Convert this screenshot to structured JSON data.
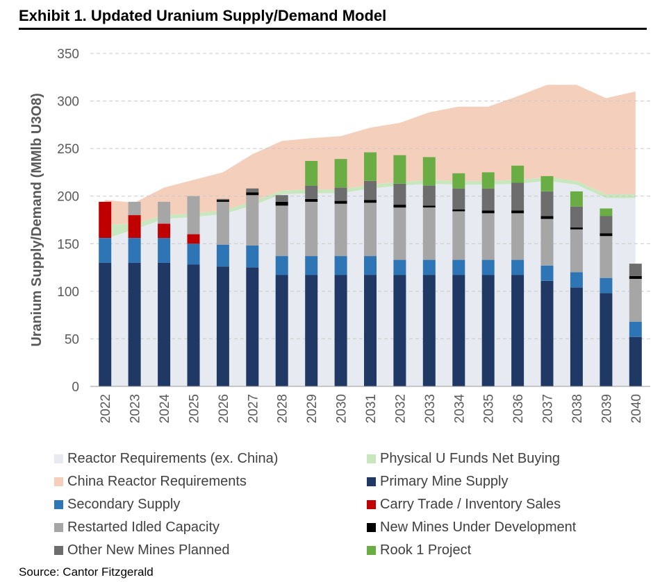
{
  "header": {
    "title": "Exhibit 1. Updated Uranium Supply/Demand Model"
  },
  "footer": {
    "source": "Source: Cantor Fitzgerald"
  },
  "colors": {
    "reactor_ex_china": "#e7ebf1",
    "china_reactor": "#f4cfbb",
    "physical_funds": "#c9e7bf",
    "primary": "#1f3864",
    "secondary": "#2e75b6",
    "carry_trade": "#c00000",
    "restarted": "#a6a6a6",
    "new_mines": "#000000",
    "other_new": "#6d6d6d",
    "rook1": "#6aad45",
    "grid": "#c8c8c8",
    "axis_text": "#595959"
  },
  "chart_data": {
    "type": "bar",
    "stacked": true,
    "ylabel": "Uranium Supply/Demand (MMlb U3O8)",
    "ylim": [
      0,
      350
    ],
    "yticks": [
      0,
      50,
      100,
      150,
      200,
      250,
      300,
      350
    ],
    "grid": true,
    "legend_position": "bottom",
    "categories": [
      "2022",
      "2023",
      "2024",
      "2025",
      "2026",
      "2027",
      "2028",
      "2029",
      "2030",
      "2031",
      "2032",
      "2033",
      "2034",
      "2035",
      "2036",
      "2037",
      "2038",
      "2039",
      "2040"
    ],
    "area_series": [
      {
        "key": "reactor_ex_china",
        "name": "Reactor Requirements (ex. China)",
        "values": [
          155,
          165,
          176,
          178,
          181,
          190,
          202,
          203,
          203,
          208,
          211,
          213,
          212,
          212,
          213,
          216,
          212,
          198,
          198
        ]
      },
      {
        "key": "physical_funds",
        "name": "Physical U Funds Net Buying",
        "values": [
          15,
          6,
          4,
          4,
          4,
          4,
          4,
          4,
          4,
          4,
          4,
          4,
          4,
          4,
          4,
          4,
          4,
          4,
          4
        ]
      },
      {
        "key": "china_reactor",
        "name": "China Reactor Requirements",
        "values": [
          26,
          22,
          29,
          35,
          40,
          50,
          52,
          54,
          56,
          60,
          62,
          71,
          78,
          78,
          88,
          97,
          101,
          101,
          108
        ]
      }
    ],
    "bar_series": [
      {
        "key": "primary",
        "name": "Primary Mine Supply",
        "values": [
          130,
          130,
          130,
          128,
          126,
          125,
          117,
          117,
          117,
          117,
          117,
          117,
          117,
          117,
          117,
          111,
          104,
          98,
          52
        ]
      },
      {
        "key": "secondary",
        "name": "Secondary Supply",
        "values": [
          26,
          26,
          26,
          22,
          23,
          23,
          20,
          20,
          20,
          20,
          16,
          16,
          16,
          16,
          16,
          16,
          16,
          16,
          16
        ]
      },
      {
        "key": "carry_trade",
        "name": "Carry Trade / Inventory Sales",
        "values": [
          38,
          24,
          15,
          10,
          0,
          0,
          0,
          0,
          0,
          0,
          0,
          0,
          0,
          0,
          0,
          0,
          0,
          0,
          0
        ]
      },
      {
        "key": "restarted",
        "name": "Restarted Idled Capacity",
        "values": [
          0,
          14,
          23,
          40,
          45,
          53,
          53,
          57,
          55,
          56,
          55,
          55,
          51,
          49,
          49,
          49,
          45,
          44,
          45
        ]
      },
      {
        "key": "new_mines",
        "name": "New Mines Under Development",
        "values": [
          0,
          0,
          0,
          0,
          2,
          3,
          4,
          3,
          3,
          3,
          3,
          2,
          2,
          3,
          3,
          3,
          2,
          3,
          3
        ]
      },
      {
        "key": "other_new",
        "name": "Other New Mines Planned",
        "values": [
          0,
          0,
          0,
          0,
          1,
          4,
          7,
          14,
          14,
          20,
          22,
          21,
          22,
          23,
          29,
          26,
          22,
          18,
          13
        ]
      },
      {
        "key": "rook1",
        "name": "Rook 1 Project",
        "values": [
          0,
          0,
          0,
          0,
          0,
          0,
          0,
          26,
          30,
          30,
          30,
          30,
          16,
          17,
          18,
          16,
          16,
          8,
          0
        ]
      }
    ],
    "legend_order": [
      "reactor_ex_china",
      "physical_funds",
      "china_reactor",
      "primary",
      "secondary",
      "carry_trade",
      "restarted",
      "new_mines",
      "other_new",
      "rook1"
    ]
  }
}
